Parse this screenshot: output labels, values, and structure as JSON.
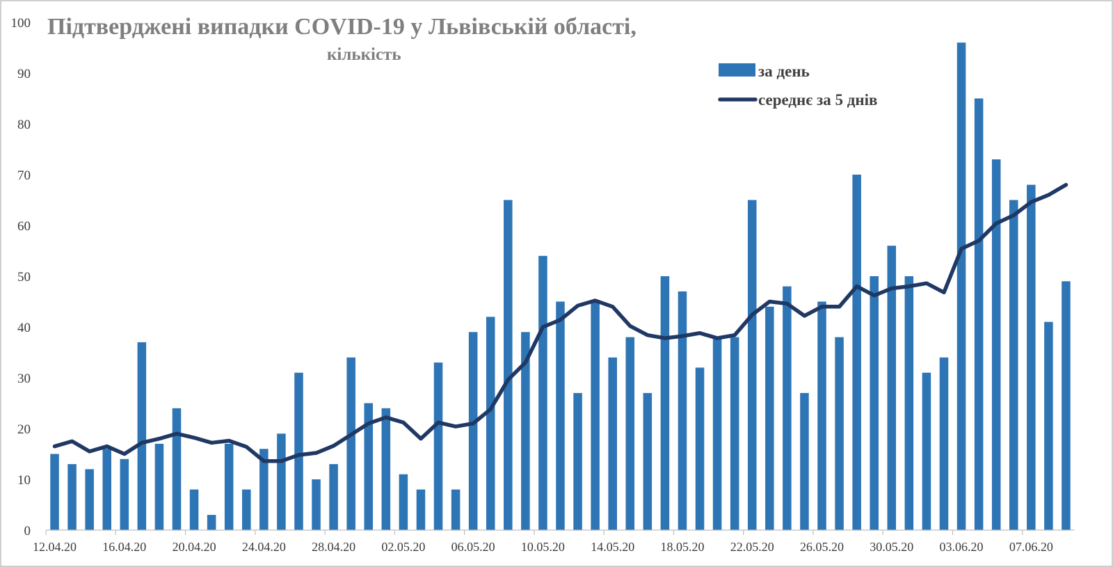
{
  "chart_data": {
    "type": "bar",
    "title": "Підтверджені випадки COVID-19 у Львівській області,",
    "subtitle": "кількість",
    "ylim": [
      0,
      100
    ],
    "y_ticks": [
      "0",
      "10",
      "20",
      "30",
      "40",
      "50",
      "60",
      "70",
      "80",
      "90",
      "100"
    ],
    "x_tick_labels": [
      "12.04.20",
      "16.04.20",
      "20.04.20",
      "24.04.20",
      "28.04.20",
      "02.05.20",
      "06.05.20",
      "10.05.20",
      "14.05.20",
      "18.05.20",
      "22.05.20",
      "26.05.20",
      "30.05.20",
      "03.06.20",
      "07.06.20"
    ],
    "grid": false,
    "legend_position": "top-right",
    "colors": {
      "bars": "#2e75b6",
      "line": "#1f3864"
    },
    "start_date": "2020-04-12",
    "series": [
      {
        "name": "за день",
        "type": "bar",
        "values": [
          15,
          13,
          12,
          16,
          14,
          37,
          17,
          24,
          8,
          3,
          17,
          8,
          16,
          19,
          31,
          10,
          13,
          34,
          25,
          24,
          11,
          8,
          33,
          8,
          39,
          42,
          65,
          39,
          54,
          45,
          27,
          45,
          34,
          38,
          27,
          50,
          47,
          32,
          38,
          38,
          65,
          44,
          48,
          27,
          45,
          38,
          70,
          50,
          56,
          50,
          31,
          34,
          96,
          85,
          73,
          65,
          68,
          41,
          49
        ]
      },
      {
        "name": "середнє за 5 днів",
        "type": "line",
        "values": [
          16.5,
          17.5,
          15.5,
          16.5,
          15,
          17.2,
          18,
          19,
          18.2,
          17.2,
          17.6,
          16.4,
          13.6,
          13.6,
          14.8,
          15.2,
          16.6,
          18.8,
          21,
          22.2,
          21.2,
          18,
          21.2,
          20.4,
          21,
          23.8,
          29.6,
          33,
          40,
          41.4,
          44.2,
          45.2,
          44,
          40.2,
          38.4,
          37.8,
          38.2,
          38.8,
          37.8,
          38.4,
          42.4,
          45,
          44.6,
          42.2,
          44,
          44,
          48,
          46.2,
          47.6,
          48,
          48.6,
          46.8,
          55.4,
          57,
          60.4,
          62,
          64.6,
          66,
          68
        ]
      }
    ]
  }
}
